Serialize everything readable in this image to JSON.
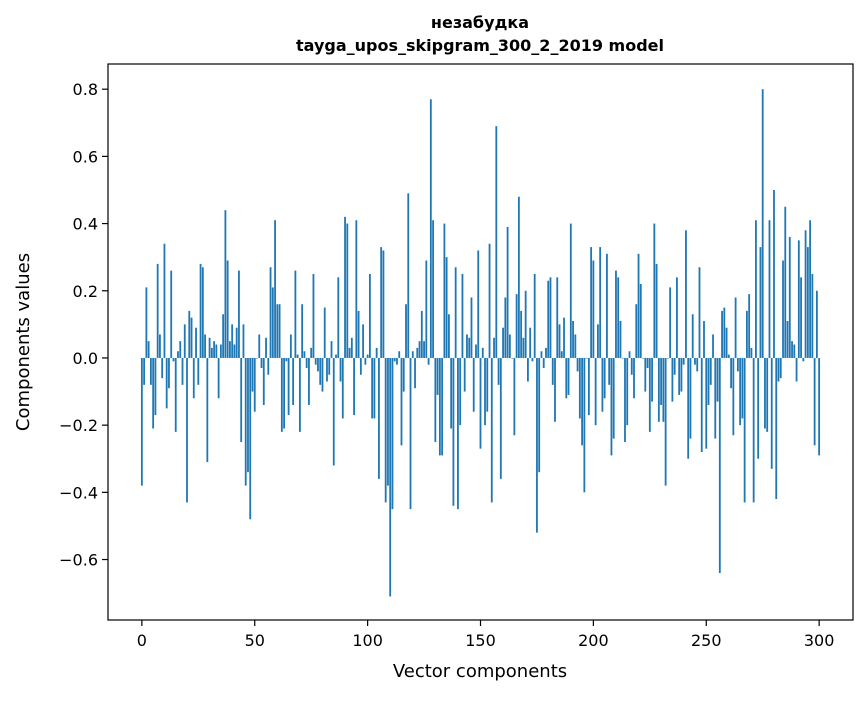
{
  "chart_data": {
    "type": "bar",
    "title_lines": [
      "незабудка",
      "tayga_upos_skipgram_300_2_2019 model"
    ],
    "xlabel": "Vector components",
    "ylabel": "Components values",
    "xlim": [
      -15,
      315
    ],
    "ylim": [
      -0.78,
      0.875
    ],
    "x_ticks": [
      0,
      50,
      100,
      150,
      200,
      250,
      300
    ],
    "x_tick_labels": [
      "0",
      "50",
      "100",
      "150",
      "200",
      "250",
      "300"
    ],
    "y_ticks": [
      -0.6,
      -0.4,
      -0.2,
      0.0,
      0.2,
      0.4,
      0.6,
      0.8
    ],
    "y_tick_labels": [
      "−0.6",
      "−0.4",
      "−0.2",
      "0.0",
      "0.2",
      "0.4",
      "0.6",
      "0.8"
    ],
    "grid": false,
    "bar_color": "#1f77b4",
    "values": [
      -0.38,
      -0.08,
      0.21,
      0.05,
      -0.08,
      -0.21,
      -0.17,
      0.28,
      0.07,
      -0.06,
      0.34,
      -0.15,
      -0.09,
      0.26,
      -0.01,
      -0.22,
      0.02,
      0.05,
      -0.08,
      0.1,
      -0.43,
      0.14,
      0.12,
      -0.12,
      0.09,
      -0.08,
      0.28,
      0.27,
      0.07,
      -0.31,
      0.06,
      0.03,
      0.05,
      0.04,
      -0.12,
      0.04,
      0.13,
      0.44,
      0.29,
      0.05,
      0.1,
      0.04,
      0.09,
      0.26,
      -0.25,
      0.1,
      -0.38,
      -0.34,
      -0.48,
      -0.1,
      -0.16,
      0.0,
      0.07,
      -0.03,
      -0.14,
      0.06,
      -0.05,
      0.27,
      0.21,
      0.41,
      0.16,
      0.16,
      -0.22,
      -0.21,
      -0.01,
      -0.17,
      0.07,
      -0.14,
      0.26,
      0.01,
      -0.22,
      0.16,
      0.02,
      -0.03,
      -0.14,
      0.03,
      0.25,
      -0.02,
      -0.04,
      -0.08,
      -0.1,
      0.15,
      -0.07,
      -0.05,
      0.05,
      -0.32,
      0.01,
      0.24,
      -0.07,
      -0.18,
      0.42,
      0.4,
      0.03,
      0.06,
      -0.17,
      0.41,
      0.14,
      -0.05,
      0.1,
      -0.02,
      0.01,
      0.25,
      -0.18,
      -0.18,
      0.03,
      -0.36,
      0.33,
      0.32,
      -0.43,
      -0.38,
      -0.71,
      -0.45,
      -0.01,
      -0.02,
      0.02,
      -0.26,
      -0.1,
      0.16,
      0.49,
      -0.45,
      0.02,
      -0.09,
      0.03,
      0.05,
      0.14,
      0.05,
      0.29,
      -0.02,
      0.77,
      0.41,
      -0.25,
      -0.11,
      -0.29,
      -0.29,
      0.4,
      0.3,
      0.13,
      -0.21,
      -0.44,
      0.27,
      -0.45,
      -0.2,
      0.25,
      -0.1,
      0.07,
      0.06,
      0.18,
      -0.16,
      0.04,
      0.32,
      -0.27,
      0.03,
      -0.2,
      -0.16,
      0.34,
      -0.43,
      0.06,
      0.69,
      -0.08,
      -0.36,
      0.09,
      0.18,
      0.39,
      0.07,
      0.0,
      -0.23,
      0.19,
      0.48,
      0.14,
      0.06,
      0.2,
      -0.07,
      0.09,
      -0.01,
      0.25,
      -0.52,
      -0.34,
      0.02,
      -0.03,
      0.03,
      0.23,
      0.24,
      -0.08,
      -0.19,
      0.24,
      0.1,
      0.02,
      0.12,
      -0.12,
      -0.11,
      0.4,
      0.11,
      0.07,
      -0.04,
      -0.18,
      -0.26,
      -0.4,
      0.0,
      -0.17,
      0.33,
      0.29,
      -0.2,
      0.1,
      0.33,
      -0.16,
      -0.12,
      0.31,
      -0.08,
      -0.29,
      -0.24,
      0.26,
      0.24,
      0.11,
      0.0,
      -0.25,
      -0.2,
      0.02,
      -0.05,
      -0.12,
      0.16,
      0.31,
      0.22,
      0.0,
      -0.1,
      -0.03,
      -0.22,
      -0.13,
      0.4,
      0.28,
      -0.19,
      -0.14,
      -0.19,
      -0.38,
      0.0,
      0.21,
      -0.13,
      -0.05,
      0.24,
      -0.11,
      -0.1,
      -0.02,
      0.38,
      -0.3,
      -0.24,
      0.13,
      -0.02,
      -0.04,
      0.27,
      -0.28,
      0.11,
      -0.27,
      -0.14,
      -0.08,
      0.07,
      -0.24,
      -0.13,
      -0.64,
      0.14,
      0.15,
      0.09,
      0.01,
      -0.09,
      -0.23,
      0.18,
      -0.04,
      -0.2,
      -0.18,
      -0.43,
      0.14,
      0.19,
      0.03,
      -0.43,
      0.41,
      -0.3,
      0.33,
      0.8,
      -0.21,
      -0.22,
      0.41,
      -0.33,
      0.5,
      -0.42,
      -0.07,
      -0.06,
      0.29,
      0.45,
      0.11,
      0.36,
      0.05,
      0.04,
      -0.07,
      0.35,
      0.24,
      -0.01,
      0.38,
      0.33,
      0.41,
      0.25,
      -0.26,
      0.2,
      -0.29
    ]
  }
}
